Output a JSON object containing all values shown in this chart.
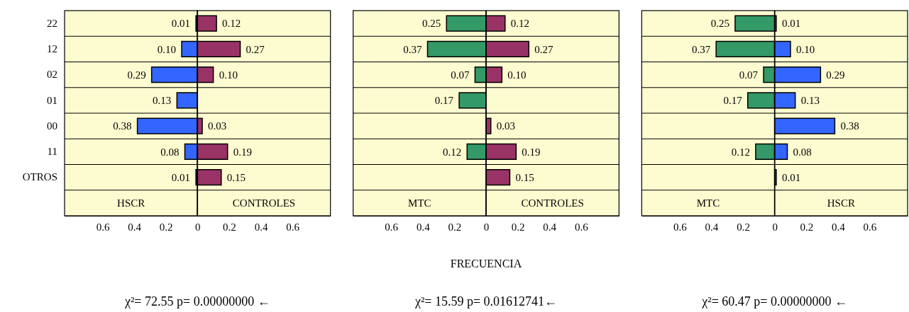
{
  "chart_data": [
    {
      "type": "bar",
      "orientation": "horizontal",
      "grid": "y",
      "categories": [
        "22",
        "12",
        "02",
        "01",
        "00",
        "11",
        "OTROS"
      ],
      "xlim": [
        0.84,
        0
      ],
      "xticks": [
        0.6,
        0.4,
        0.2,
        0
      ],
      "series": [
        {
          "color": "#3366ff",
          "values": [
            0.01,
            0.1,
            0.29,
            0.13,
            0.38,
            0.08,
            0.01
          ],
          "value_labels": [
            "0.01",
            "0.10",
            "0.29",
            "0.13",
            "0.38",
            "0.08",
            "0.01"
          ]
        }
      ],
      "annotations": [
        "HSCR",
        "χ²= 72.55 p= 0.00000000 ←"
      ]
    },
    {
      "type": "bar",
      "orientation": "horizontal",
      "grid": "y",
      "categories": [
        null,
        null,
        null,
        null,
        null,
        null,
        null
      ],
      "xlim": [
        0,
        0.84
      ],
      "xticks": [
        0.2,
        0.4,
        0.6
      ],
      "series": [
        {
          "color": "#993366",
          "values": [
            0.12,
            0.27,
            0.1,
            null,
            0.03,
            0.19,
            0.15
          ],
          "value_labels": [
            "0.12",
            "0.27",
            "0.10",
            null,
            "0.03",
            "0.19",
            "0.15"
          ]
        }
      ],
      "annotations": [
        "CONTROLES"
      ]
    },
    {
      "type": "bar",
      "orientation": "horizontal",
      "grid": "y",
      "categories": [
        null,
        null,
        null,
        null,
        null,
        null,
        null
      ],
      "xlim": [
        0.84,
        0
      ],
      "xticks": [
        0.6,
        0.4,
        0.2,
        0
      ],
      "xlabel": "FRECUENCIA",
      "series": [
        {
          "color": "#339966",
          "values": [
            0.25,
            0.37,
            0.07,
            0.17,
            null,
            0.12,
            null
          ],
          "value_labels": [
            "0.25",
            "0.37",
            "0.07",
            "0.17",
            null,
            "0.12",
            null
          ]
        }
      ],
      "annotations": [
        "MTC",
        "χ²= 15.59 p= 0.01612741←"
      ]
    },
    {
      "type": "bar",
      "orientation": "horizontal",
      "grid": "y",
      "categories": [
        null,
        null,
        null,
        null,
        null,
        null,
        null
      ],
      "xlim": [
        0,
        0.84
      ],
      "xticks": [
        0.2,
        0.4,
        0.6
      ],
      "series": [
        {
          "color": "#993366",
          "values": [
            0.12,
            0.27,
            0.1,
            null,
            0.03,
            0.19,
            0.15
          ],
          "value_labels": [
            "0.12",
            "0.27",
            "0.10",
            null,
            "0.03",
            "0.19",
            "0.15"
          ]
        }
      ],
      "annotations": [
        "CONTROLES"
      ]
    },
    {
      "type": "bar",
      "orientation": "horizontal",
      "grid": "y",
      "categories": [
        null,
        null,
        null,
        null,
        null,
        null,
        null
      ],
      "xlim": [
        0.84,
        0
      ],
      "xticks": [
        0.6,
        0.4,
        0.2,
        0
      ],
      "series": [
        {
          "color": "#339966",
          "values": [
            0.25,
            0.37,
            0.07,
            0.17,
            null,
            0.12,
            null
          ],
          "value_labels": [
            "0.25",
            "0.37",
            "0.07",
            "0.17",
            null,
            "0.12",
            null
          ]
        }
      ],
      "annotations": [
        "MTC",
        "χ²= 60.47 p= 0.00000000 ←"
      ]
    },
    {
      "type": "bar",
      "orientation": "horizontal",
      "grid": "y",
      "categories": [
        null,
        null,
        null,
        null,
        null,
        null,
        null
      ],
      "xlim": [
        0,
        0.84
      ],
      "xticks": [
        0.2,
        0.4,
        0.6
      ],
      "series": [
        {
          "color": "#3366ff",
          "values": [
            0.01,
            0.1,
            0.29,
            0.13,
            0.38,
            0.08,
            0.01
          ],
          "value_labels": [
            "0.01",
            "0.10",
            "0.29",
            "0.13",
            "0.38",
            "0.08",
            "0.01"
          ]
        }
      ],
      "annotations": [
        "HSCR"
      ]
    }
  ]
}
